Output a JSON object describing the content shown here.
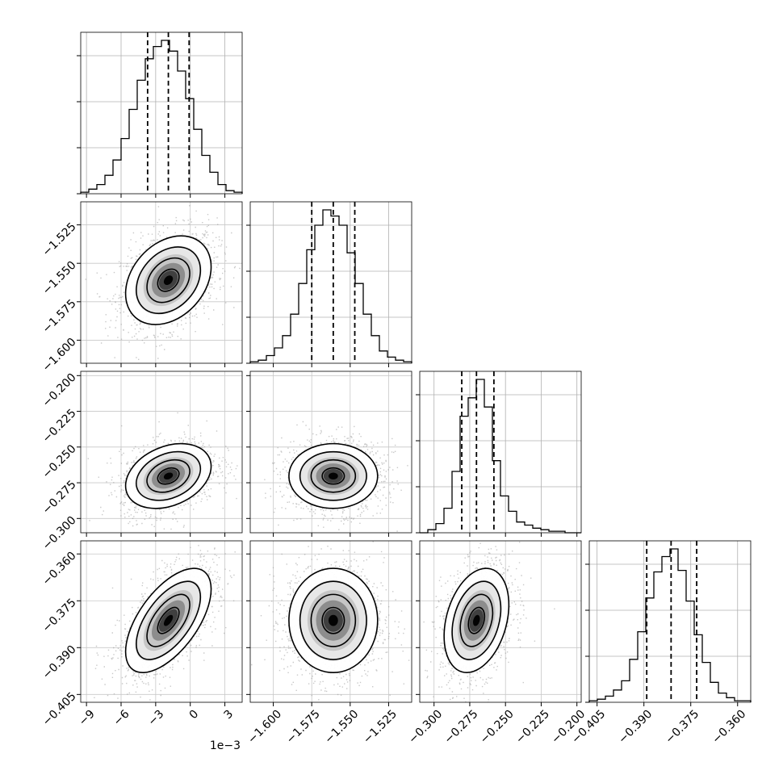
{
  "chart_data": {
    "type": "corner",
    "parameters": [
      {
        "index": 0,
        "range": [
          -9.5,
          4.5
        ],
        "unit_scale": 0.001,
        "offset_label": "1e−3",
        "ticks": [
          -9,
          -6,
          -3,
          0,
          3
        ],
        "tick_labels": [
          "−9",
          "−6",
          "−3",
          "0",
          "3"
        ],
        "quantiles": [
          -3.7,
          -1.9,
          -0.1
        ],
        "median": -1.9,
        "sigma": 1.8
      },
      {
        "index": 1,
        "range": [
          -1.615,
          -1.51
        ],
        "ticks": [
          -1.6,
          -1.575,
          -1.55,
          -1.525
        ],
        "tick_labels": [
          "−1.600",
          "−1.575",
          "−1.550",
          "−1.525"
        ],
        "quantiles": [
          -1.575,
          -1.561,
          -1.547
        ],
        "median": -1.561,
        "sigma": 0.014
      },
      {
        "index": 2,
        "range": [
          -0.31,
          -0.197
        ],
        "ticks": [
          -0.3,
          -0.275,
          -0.25,
          -0.225,
          -0.2
        ],
        "tick_labels": [
          "−0.300",
          "−0.275",
          "−0.250",
          "−0.225",
          "−0.200"
        ],
        "quantiles": [
          -0.2806,
          -0.2703,
          -0.2581
        ],
        "median": -0.2703,
        "sigma": 0.011
      },
      {
        "index": 3,
        "range": [
          -0.4075,
          -0.3558
        ],
        "ticks": [
          -0.405,
          -0.39,
          -0.375,
          -0.36
        ],
        "tick_labels": [
          "−0.405",
          "−0.390",
          "−0.375",
          "−0.360"
        ],
        "quantiles": [
          -0.3891,
          -0.3813,
          -0.3731
        ],
        "median": -0.3813,
        "sigma": 0.0081
      }
    ],
    "histograms": [
      {
        "param": 0,
        "counts": [
          1,
          3,
          6,
          12,
          22,
          36,
          55,
          74,
          88,
          96,
          100,
          93,
          80,
          62,
          42,
          25,
          14,
          6,
          2,
          1
        ]
      },
      {
        "param": 1,
        "counts": [
          1,
          2,
          5,
          10,
          18,
          32,
          52,
          74,
          90,
          100,
          96,
          90,
          72,
          52,
          32,
          18,
          8,
          4,
          2,
          1
        ]
      },
      {
        "param": 2,
        "counts": [
          0,
          2,
          6,
          16,
          40,
          76,
          88,
          100,
          82,
          47,
          24,
          14,
          7,
          5,
          3,
          2,
          1,
          1,
          0,
          0
        ]
      },
      {
        "param": 3,
        "counts": [
          1,
          2,
          4,
          8,
          14,
          28,
          46,
          68,
          85,
          95,
          100,
          86,
          66,
          44,
          26,
          13,
          6,
          3,
          1,
          1
        ]
      }
    ],
    "correlations": {
      "1_0": 0.3,
      "2_0": 0.3,
      "2_1": 0.0,
      "3_0": 0.6,
      "3_1": 0.0,
      "3_2": 0.3
    },
    "contour_levels_sigma": [
      0.5,
      1.0,
      1.5,
      2.0
    ],
    "grid": true
  }
}
